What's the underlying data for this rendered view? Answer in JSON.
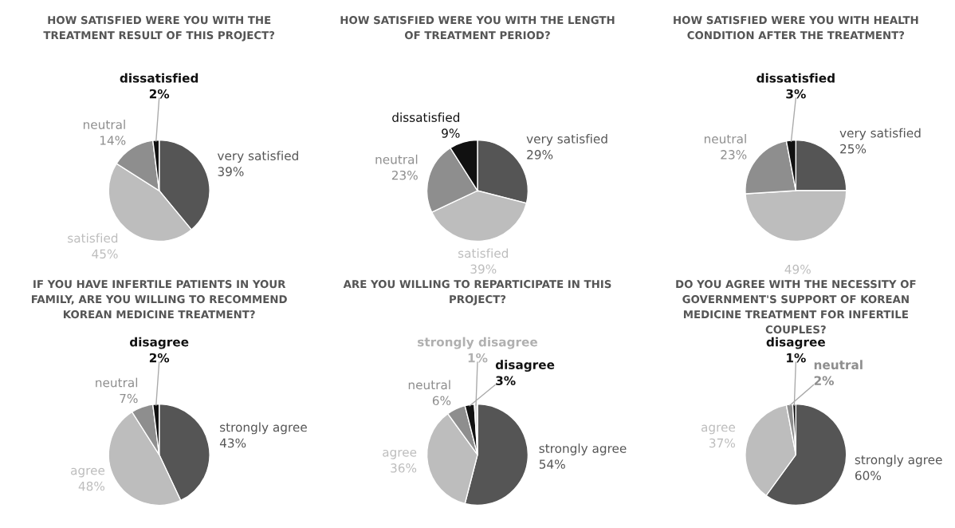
{
  "chart_data": [
    {
      "type": "pie",
      "title": "HOW SATISFIED WERE YOU WITH THE\nTREATMENT RESULT OF THIS PROJECT?",
      "categories": [
        "very satisfied",
        "satisfied",
        "neutral",
        "dissatisfied"
      ],
      "values": [
        39,
        45,
        14,
        2
      ],
      "value_labels": [
        "39%",
        "45%",
        "14%",
        "2%"
      ],
      "colors": [
        "#555555",
        "#bdbdbd",
        "#8e8e8e",
        "#111111"
      ]
    },
    {
      "type": "pie",
      "title": "HOW SATISFIED WERE YOU WITH THE LENGTH\nOF TREATMENT PERIOD?",
      "categories": [
        "very satisfied",
        "satisfied",
        "neutral",
        "dissatisfied"
      ],
      "values": [
        29,
        39,
        23,
        9
      ],
      "value_labels": [
        "29%",
        "39%",
        "23%",
        "9%"
      ],
      "colors": [
        "#555555",
        "#bdbdbd",
        "#8e8e8e",
        "#111111"
      ]
    },
    {
      "type": "pie",
      "title": "HOW SATISFIED WERE YOU WITH HEALTH\nCONDITION AFTER THE TREATMENT?",
      "categories": [
        "very satisfied",
        null,
        "neutral",
        "dissatisfied"
      ],
      "values": [
        25,
        49,
        23,
        3
      ],
      "value_labels": [
        "25%",
        "49%",
        "23%",
        "3%"
      ],
      "colors": [
        "#555555",
        "#bdbdbd",
        "#8e8e8e",
        "#111111"
      ]
    },
    {
      "type": "pie",
      "title": "IF YOU HAVE INFERTILE PATIENTS IN YOUR\nFAMILY, ARE YOU WILLING TO RECOMMEND\nKOREAN MEDICINE TREATMENT?",
      "categories": [
        "strongly agree",
        "agree",
        "neutral",
        "disagree"
      ],
      "values": [
        43,
        48,
        7,
        2
      ],
      "value_labels": [
        "43%",
        "48%",
        "7%",
        "2%"
      ],
      "colors": [
        "#555555",
        "#bdbdbd",
        "#8e8e8e",
        "#111111"
      ]
    },
    {
      "type": "pie",
      "title": "ARE YOU WILLING TO REPARTICIPATE IN THIS\nPROJECT?",
      "categories": [
        "strongly agree",
        "agree",
        "neutral",
        "disagree",
        "strongly disagree"
      ],
      "values": [
        54,
        36,
        6,
        3,
        1
      ],
      "value_labels": [
        "54%",
        "36%",
        "6%",
        "3%",
        "1%"
      ],
      "colors": [
        "#555555",
        "#bdbdbd",
        "#8e8e8e",
        "#111111",
        "#d9d9d9"
      ]
    },
    {
      "type": "pie",
      "title": "DO YOU AGREE WITH THE NECESSITY OF\nGOVERNMENT'S SUPPORT OF KOREAN\nMEDICINE TREATMENT FOR INFERTILE\nCOUPLES?",
      "categories": [
        "strongly agree",
        "agree",
        "neutral",
        "disagree"
      ],
      "values": [
        60,
        37,
        2,
        1
      ],
      "value_labels": [
        "60%",
        "37%",
        "2%",
        "1%"
      ],
      "colors": [
        "#555555",
        "#bdbdbd",
        "#8e8e8e",
        "#111111"
      ]
    }
  ]
}
